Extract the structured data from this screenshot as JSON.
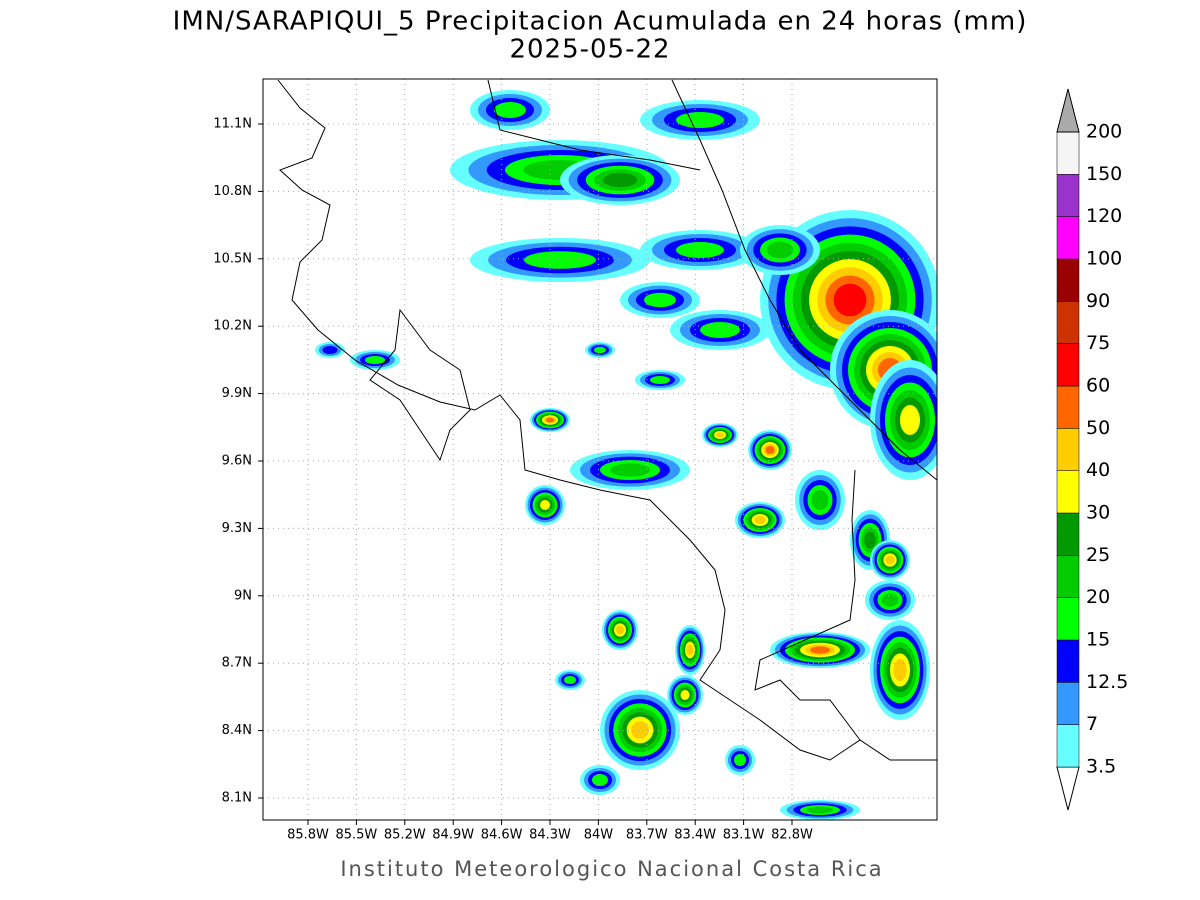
{
  "title": "IMN/SARAPIQUI_5 Precipitacion Acumulada en 24 horas (mm)",
  "subtitle": "2025-05-22",
  "x_ticks": [
    "85.8W",
    "85.5W",
    "85.2W",
    "84.9W",
    "84.6W",
    "84.3W",
    "84W",
    "83.7W",
    "83.4W",
    "83.1W",
    "82.8W"
  ],
  "y_ticks": [
    "11.1N",
    "10.8N",
    "10.5N",
    "10.2N",
    "9.9N",
    "9.6N",
    "9.3N",
    "9N",
    "8.7N",
    "8.4N",
    "8.1N"
  ],
  "colorbar": {
    "labels": [
      "3.5",
      "7",
      "12.5",
      "15",
      "20",
      "25",
      "30",
      "40",
      "50",
      "60",
      "75",
      "90",
      "100",
      "120",
      "150",
      "200"
    ],
    "colors": [
      "#ffffff",
      "#66ffff",
      "#3399ff",
      "#0000ff",
      "#00ff00",
      "#00cc00",
      "#009900",
      "#ffff00",
      "#ffcc00",
      "#ff6600",
      "#ff0000",
      "#cc3300",
      "#990000",
      "#ff00ff",
      "#9933cc",
      "#f5f5f5",
      "#aaaaaa"
    ]
  },
  "footer": "Instituto Meteorologico Nacional Costa Rica"
}
